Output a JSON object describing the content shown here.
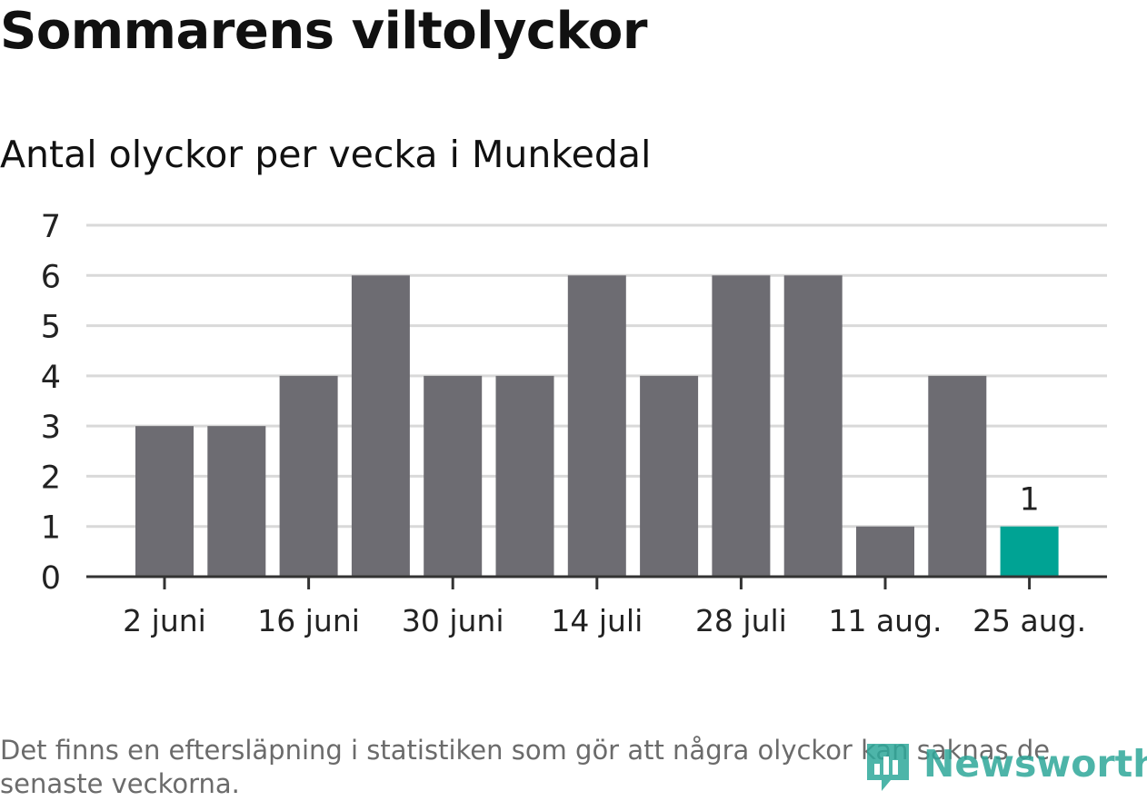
{
  "title": "Sommarens viltolyckor",
  "subtitle": "Antal olyckor per vecka i Munkedal",
  "footnote": "Det finns en eftersläpning i statistiken som gör att några olyckor kan saknas de senaste veckorna.",
  "brand": {
    "name": "Newsworthy",
    "icon": "bar-chart-pin-icon",
    "color": "#2ea89a"
  },
  "colors": {
    "bar": "#6d6c72",
    "highlight": "#00a394",
    "grid": "#d9d9d9",
    "axis": "#333333"
  },
  "chart_data": {
    "type": "bar",
    "x": [
      "2 juni",
      "9 juni",
      "16 juni",
      "23 juni",
      "30 juni",
      "7 juli",
      "14 juli",
      "21 juli",
      "28 juli",
      "4 aug.",
      "11 aug.",
      "18 aug.",
      "25 aug."
    ],
    "values": [
      3,
      3,
      4,
      6,
      4,
      4,
      6,
      4,
      6,
      6,
      1,
      4,
      1
    ],
    "x_tick_labels": [
      "2 juni",
      "16 juni",
      "30 juni",
      "14 juli",
      "28 juli",
      "11 aug.",
      "25 aug."
    ],
    "y_ticks": [
      0,
      1,
      2,
      3,
      4,
      5,
      6,
      7
    ],
    "ylim": [
      0,
      7
    ],
    "highlight_index": 12,
    "data_labels": [
      {
        "index": 12,
        "text": "1"
      }
    ],
    "grid": true
  }
}
